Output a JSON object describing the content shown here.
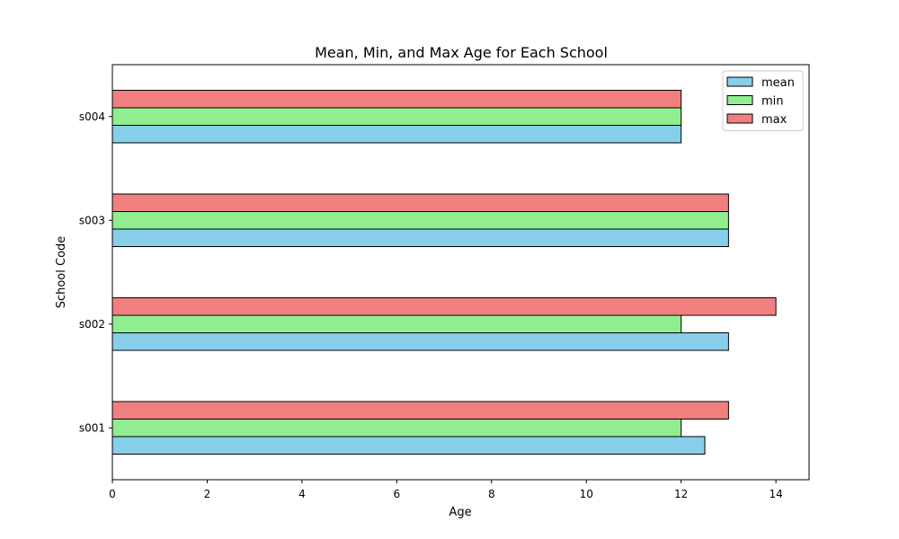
{
  "chart_data": {
    "type": "bar",
    "orientation": "horizontal",
    "title": "Mean, Min, and Max Age for Each School",
    "xlabel": "Age",
    "ylabel": "School Code",
    "categories": [
      "s001",
      "s002",
      "s003",
      "s004"
    ],
    "series": [
      {
        "name": "mean",
        "color": "#87ceeb",
        "values": [
          12.5,
          13,
          13,
          12
        ]
      },
      {
        "name": "min",
        "color": "#90ee90",
        "values": [
          12,
          12,
          13,
          12
        ]
      },
      {
        "name": "max",
        "color": "#f08080",
        "values": [
          13,
          14,
          13,
          12
        ]
      }
    ],
    "xlim": [
      0,
      14.7
    ],
    "xticks": [
      0,
      2,
      4,
      6,
      8,
      10,
      12,
      14
    ],
    "grid": false,
    "legend_position": "top-right"
  }
}
